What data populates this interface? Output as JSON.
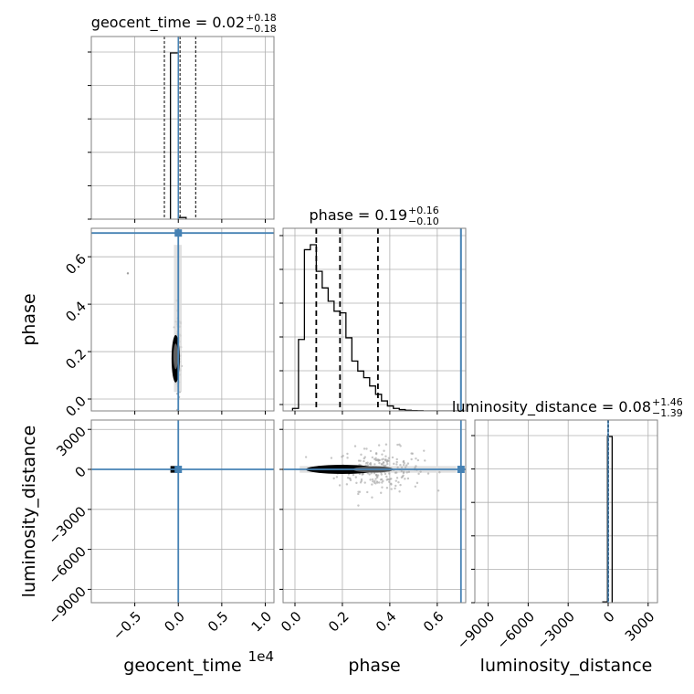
{
  "chart_data": {
    "type": "corner",
    "parameters": [
      "geocent_time",
      "phase",
      "luminosity_distance"
    ],
    "titles": {
      "geocent_time": {
        "label": "geocent_time = 0.02",
        "plus": "+0.18",
        "minus": "−0.18"
      },
      "phase": {
        "label": "phase = 0.19",
        "plus": "+0.16",
        "minus": "−0.10"
      },
      "luminosity_distance": {
        "label": "luminosity_distance = 0.08",
        "plus": "+1.46",
        "minus": "−1.39"
      }
    },
    "axis_labels": {
      "x": [
        "geocent_time",
        "phase",
        "luminosity_distance"
      ],
      "y": [
        "phase",
        "luminosity_distance"
      ]
    },
    "x_offset_label": "1e4",
    "ranges": {
      "geocent_time": [
        -1.0,
        1.1
      ],
      "phase": [
        -0.05,
        0.72
      ],
      "luminosity_distance": [
        -10000,
        3700
      ]
    },
    "ticks": {
      "geocent_time": {
        "values": [
          -0.5,
          0.0,
          0.5,
          1.0
        ],
        "labels": [
          "−0.5",
          "0.0",
          "0.5",
          "1.0"
        ]
      },
      "phase": {
        "values": [
          0.0,
          0.2,
          0.4,
          0.6
        ],
        "labels": [
          "0.0",
          "0.2",
          "0.4",
          "0.6"
        ]
      },
      "luminosity_distance": {
        "values": [
          -9000,
          -6000,
          -3000,
          0,
          3000
        ],
        "labels": [
          "−9000",
          "−6000",
          "−3000",
          "0",
          "3000"
        ]
      }
    },
    "truths": {
      "geocent_time": 0.0,
      "phase": 0.7,
      "luminosity_distance": 0
    },
    "quantiles": {
      "geocent_time": [
        -0.16,
        0.02,
        0.2
      ],
      "phase": [
        0.09,
        0.19,
        0.35
      ],
      "luminosity_distance": [
        -1.31,
        0.08,
        1.54
      ]
    },
    "histograms": {
      "geocent_time": {
        "edges": [
          -0.09,
          0.0,
          0.09
        ],
        "heights": [
          1.0,
          0.01
        ]
      },
      "phase": {
        "edges": [
          -0.01,
          0.015,
          0.04,
          0.065,
          0.09,
          0.115,
          0.14,
          0.165,
          0.19,
          0.215,
          0.24,
          0.265,
          0.29,
          0.315,
          0.34,
          0.365,
          0.39,
          0.415,
          0.44,
          0.465,
          0.49,
          0.515,
          0.54,
          0.565,
          0.59,
          0.615,
          0.64,
          0.665,
          0.69
        ],
        "heights": [
          0.015,
          0.43,
          0.97,
          1.0,
          0.84,
          0.74,
          0.66,
          0.6,
          0.59,
          0.44,
          0.3,
          0.24,
          0.2,
          0.15,
          0.1,
          0.06,
          0.03,
          0.015,
          0.008,
          0.004,
          0.002,
          0.001,
          0.0,
          0.0,
          0.0,
          0.0,
          0.0,
          0.0
        ]
      },
      "luminosity_distance": {
        "edges": [
          -400,
          -50,
          300
        ],
        "heights": [
          0.005,
          1.0
        ]
      }
    },
    "colors": {
      "truth": "#4682b4",
      "hist": "#000000",
      "samples": "#a0a0a0",
      "grid": "#b0b0b0",
      "spine": "#808080"
    },
    "grid": true
  }
}
